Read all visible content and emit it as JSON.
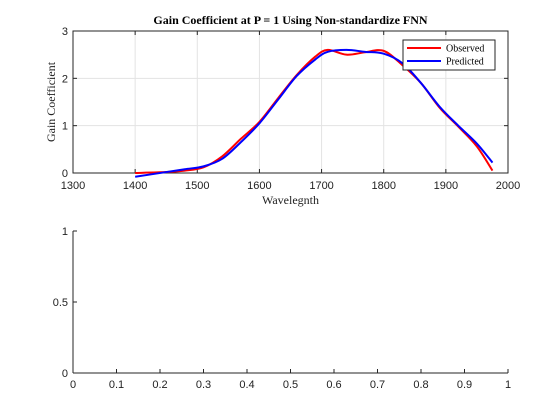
{
  "chart_data": [
    {
      "type": "line",
      "title": "Gain Coefficient at P = 1 Using Non-standardize FNN",
      "xlabel": "Wavelegnth",
      "ylabel": "Gain Coefficient",
      "xlim": [
        1300,
        2000
      ],
      "ylim": [
        0,
        3
      ],
      "xticks": [
        1300,
        1400,
        1500,
        1600,
        1700,
        1800,
        1900,
        2000
      ],
      "yticks": [
        0,
        1,
        2,
        3
      ],
      "grid": true,
      "legend": "top-right",
      "series": [
        {
          "name": "Observed",
          "color": "#ff0000",
          "x": [
            1400,
            1450,
            1480,
            1510,
            1540,
            1570,
            1600,
            1630,
            1660,
            1690,
            1710,
            1740,
            1770,
            1800,
            1830,
            1860,
            1890,
            1920,
            1950,
            1975
          ],
          "y": [
            0.0,
            0.02,
            0.05,
            0.12,
            0.35,
            0.72,
            1.08,
            1.58,
            2.07,
            2.46,
            2.6,
            2.5,
            2.55,
            2.58,
            2.28,
            1.9,
            1.38,
            0.98,
            0.56,
            0.05
          ]
        },
        {
          "name": "Predicted",
          "color": "#0000ff",
          "x": [
            1400,
            1450,
            1480,
            1510,
            1540,
            1570,
            1600,
            1630,
            1660,
            1690,
            1710,
            1740,
            1770,
            1800,
            1830,
            1860,
            1890,
            1920,
            1950,
            1975
          ],
          "y": [
            -0.08,
            0.02,
            0.08,
            0.14,
            0.3,
            0.65,
            1.05,
            1.55,
            2.05,
            2.4,
            2.56,
            2.6,
            2.56,
            2.52,
            2.32,
            1.9,
            1.4,
            1.0,
            0.62,
            0.22
          ]
        }
      ]
    },
    {
      "type": "line",
      "title": "",
      "xlabel": "",
      "ylabel": "",
      "xlim": [
        0,
        1
      ],
      "ylim": [
        0,
        1
      ],
      "xticks": [
        0,
        0.1,
        0.2,
        0.3,
        0.4,
        0.5,
        0.6,
        0.7,
        0.8,
        0.9,
        1
      ],
      "yticks": [
        0,
        0.5,
        1
      ],
      "grid": false,
      "series": []
    }
  ]
}
